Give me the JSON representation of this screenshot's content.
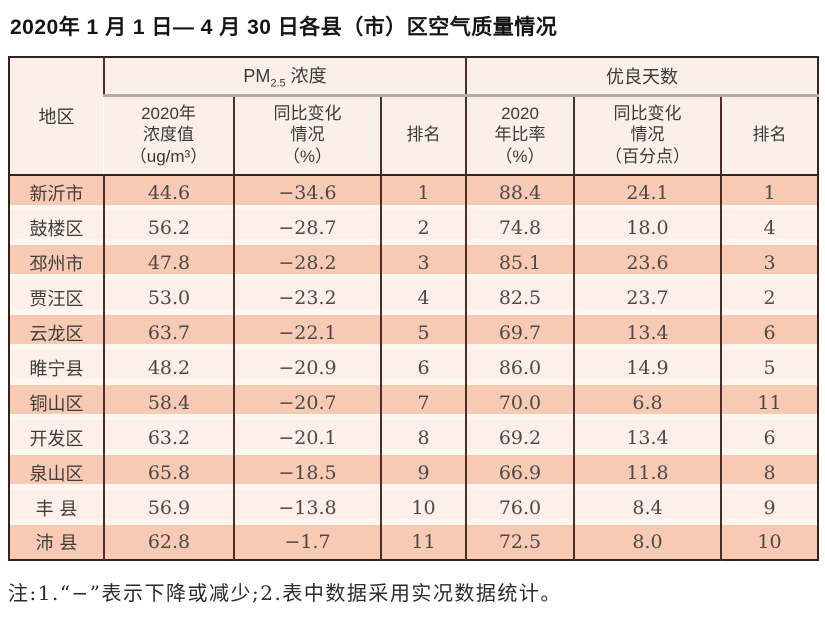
{
  "page": {
    "title": "2020年 1 月 1 日— 4 月 30 日各县（市）区空气质量情况",
    "note": "注:1.“−”表示下降或减少;2.表中数据采用实况数据统计。"
  },
  "colors": {
    "band_salmon": "#f8cab3",
    "band_light": "#fcf0e8",
    "header_bg": "#fbf0e8",
    "border_dark": "#4c2e26",
    "group_underline_gray": "#b3aca6"
  },
  "table": {
    "header": {
      "region": "地区",
      "pm_group_prefix": "PM",
      "pm_group_sub": "2.5",
      "pm_group_suffix": " 浓度",
      "good_days_group": "优良天数",
      "sub": [
        "2020年\n浓度值\n（ug/m³）",
        "同比变化\n情况\n（%）",
        "排名",
        "2020\n年比率\n（%）",
        "同比变化\n情况\n（百分点）",
        "排名"
      ]
    },
    "rows": [
      [
        "新沂市",
        "44.6",
        "−34.6",
        "1",
        "88.4",
        "24.1",
        "1"
      ],
      [
        "鼓楼区",
        "56.2",
        "−28.7",
        "2",
        "74.8",
        "18.0",
        "4"
      ],
      [
        "邳州市",
        "47.8",
        "−28.2",
        "3",
        "85.1",
        "23.6",
        "3"
      ],
      [
        "贾汪区",
        "53.0",
        "−23.2",
        "4",
        "82.5",
        "23.7",
        "2"
      ],
      [
        "云龙区",
        "63.7",
        "−22.1",
        "5",
        "69.7",
        "13.4",
        "6"
      ],
      [
        "睢宁县",
        "48.2",
        "−20.9",
        "6",
        "86.0",
        "14.9",
        "5"
      ],
      [
        "铜山区",
        "58.4",
        "−20.7",
        "7",
        "70.0",
        "6.8",
        "11"
      ],
      [
        "开发区",
        "63.2",
        "−20.1",
        "8",
        "69.2",
        "13.4",
        "6"
      ],
      [
        "泉山区",
        "65.8",
        "−18.5",
        "9",
        "66.9",
        "11.8",
        "8"
      ],
      [
        "丰 县",
        "56.9",
        "−13.8",
        "10",
        "76.0",
        "8.4",
        "9"
      ],
      [
        "沛 县",
        "62.8",
        "−1.7",
        "11",
        "72.5",
        "8.0",
        "10"
      ]
    ]
  }
}
